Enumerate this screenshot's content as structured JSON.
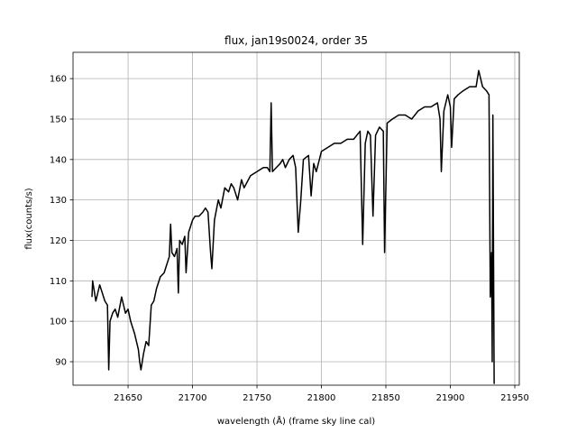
{
  "chart_data": {
    "type": "line",
    "title": "flux, jan19s0024, order 35",
    "xlabel": "wavelength (Å) (frame sky line cal)",
    "ylabel": "flux(counts/s)",
    "color": "#000000",
    "grid": true,
    "xlim": [
      21607.3,
      21953.5
    ],
    "ylim": [
      84.2,
      166.5
    ],
    "xticks": [
      21650,
      21700,
      21750,
      21800,
      21850,
      21900,
      21950
    ],
    "yticks": [
      90,
      100,
      110,
      120,
      130,
      140,
      150,
      160
    ],
    "x": [
      21622,
      21622.5,
      21625,
      21628,
      21630,
      21632,
      21634,
      21635,
      21636,
      21638,
      21640,
      21642,
      21645,
      21648,
      21650,
      21652,
      21655,
      21658,
      21659,
      21660,
      21662,
      21664,
      21666,
      21668,
      21670,
      21672,
      21675,
      21678,
      21680,
      21682,
      21683,
      21684,
      21686,
      21688,
      21689,
      21690,
      21692,
      21694,
      21695,
      21697,
      21700,
      21702,
      21705,
      21708,
      21710,
      21712,
      21714,
      21715,
      21717,
      21720,
      21722,
      21725,
      21728,
      21730,
      21732,
      21735,
      21738,
      21740,
      21745,
      21750,
      21755,
      21758,
      21760,
      21761,
      21762,
      21765,
      21768,
      21770,
      21772,
      21775,
      21778,
      21780,
      21782,
      21784,
      21786,
      21790,
      21792,
      21794,
      21796,
      21800,
      21805,
      21810,
      21815,
      21820,
      21825,
      21830,
      21832,
      21834,
      21836,
      21838,
      21840,
      21842,
      21845,
      21848,
      21849,
      21851,
      21855,
      21860,
      21865,
      21870,
      21875,
      21880,
      21885,
      21890,
      21892,
      21893,
      21895,
      21898,
      21900,
      21901,
      21903,
      21906,
      21910,
      21915,
      21920,
      21922,
      21925,
      21928,
      21930,
      21931,
      21932,
      21932.5,
      21933,
      21934
    ],
    "values": [
      106,
      110,
      105,
      109,
      107,
      105,
      104,
      88,
      100,
      102,
      103,
      101,
      106,
      102,
      103,
      100,
      97,
      93,
      90,
      88,
      92,
      95,
      94,
      104,
      105,
      108,
      111,
      112,
      114,
      116,
      124,
      117,
      116,
      118,
      107,
      120,
      119,
      121,
      112,
      122,
      125,
      126,
      126,
      127,
      128,
      127,
      117,
      113,
      125,
      130,
      128,
      133,
      132,
      134,
      133,
      130,
      135,
      133,
      136,
      137,
      138,
      138,
      137,
      154,
      137,
      138,
      139,
      140,
      138,
      140,
      141,
      138,
      122,
      130,
      140,
      141,
      131,
      139,
      137,
      142,
      143,
      144,
      144,
      145,
      145,
      147,
      119,
      144,
      147,
      146,
      126,
      146,
      148,
      147,
      117,
      149,
      150,
      151,
      151,
      150,
      152,
      153,
      153,
      154,
      150,
      137,
      152,
      156,
      153,
      143,
      155,
      156,
      157,
      158,
      158,
      162,
      158,
      157,
      156,
      106,
      117,
      90,
      151,
      84.5
    ]
  }
}
